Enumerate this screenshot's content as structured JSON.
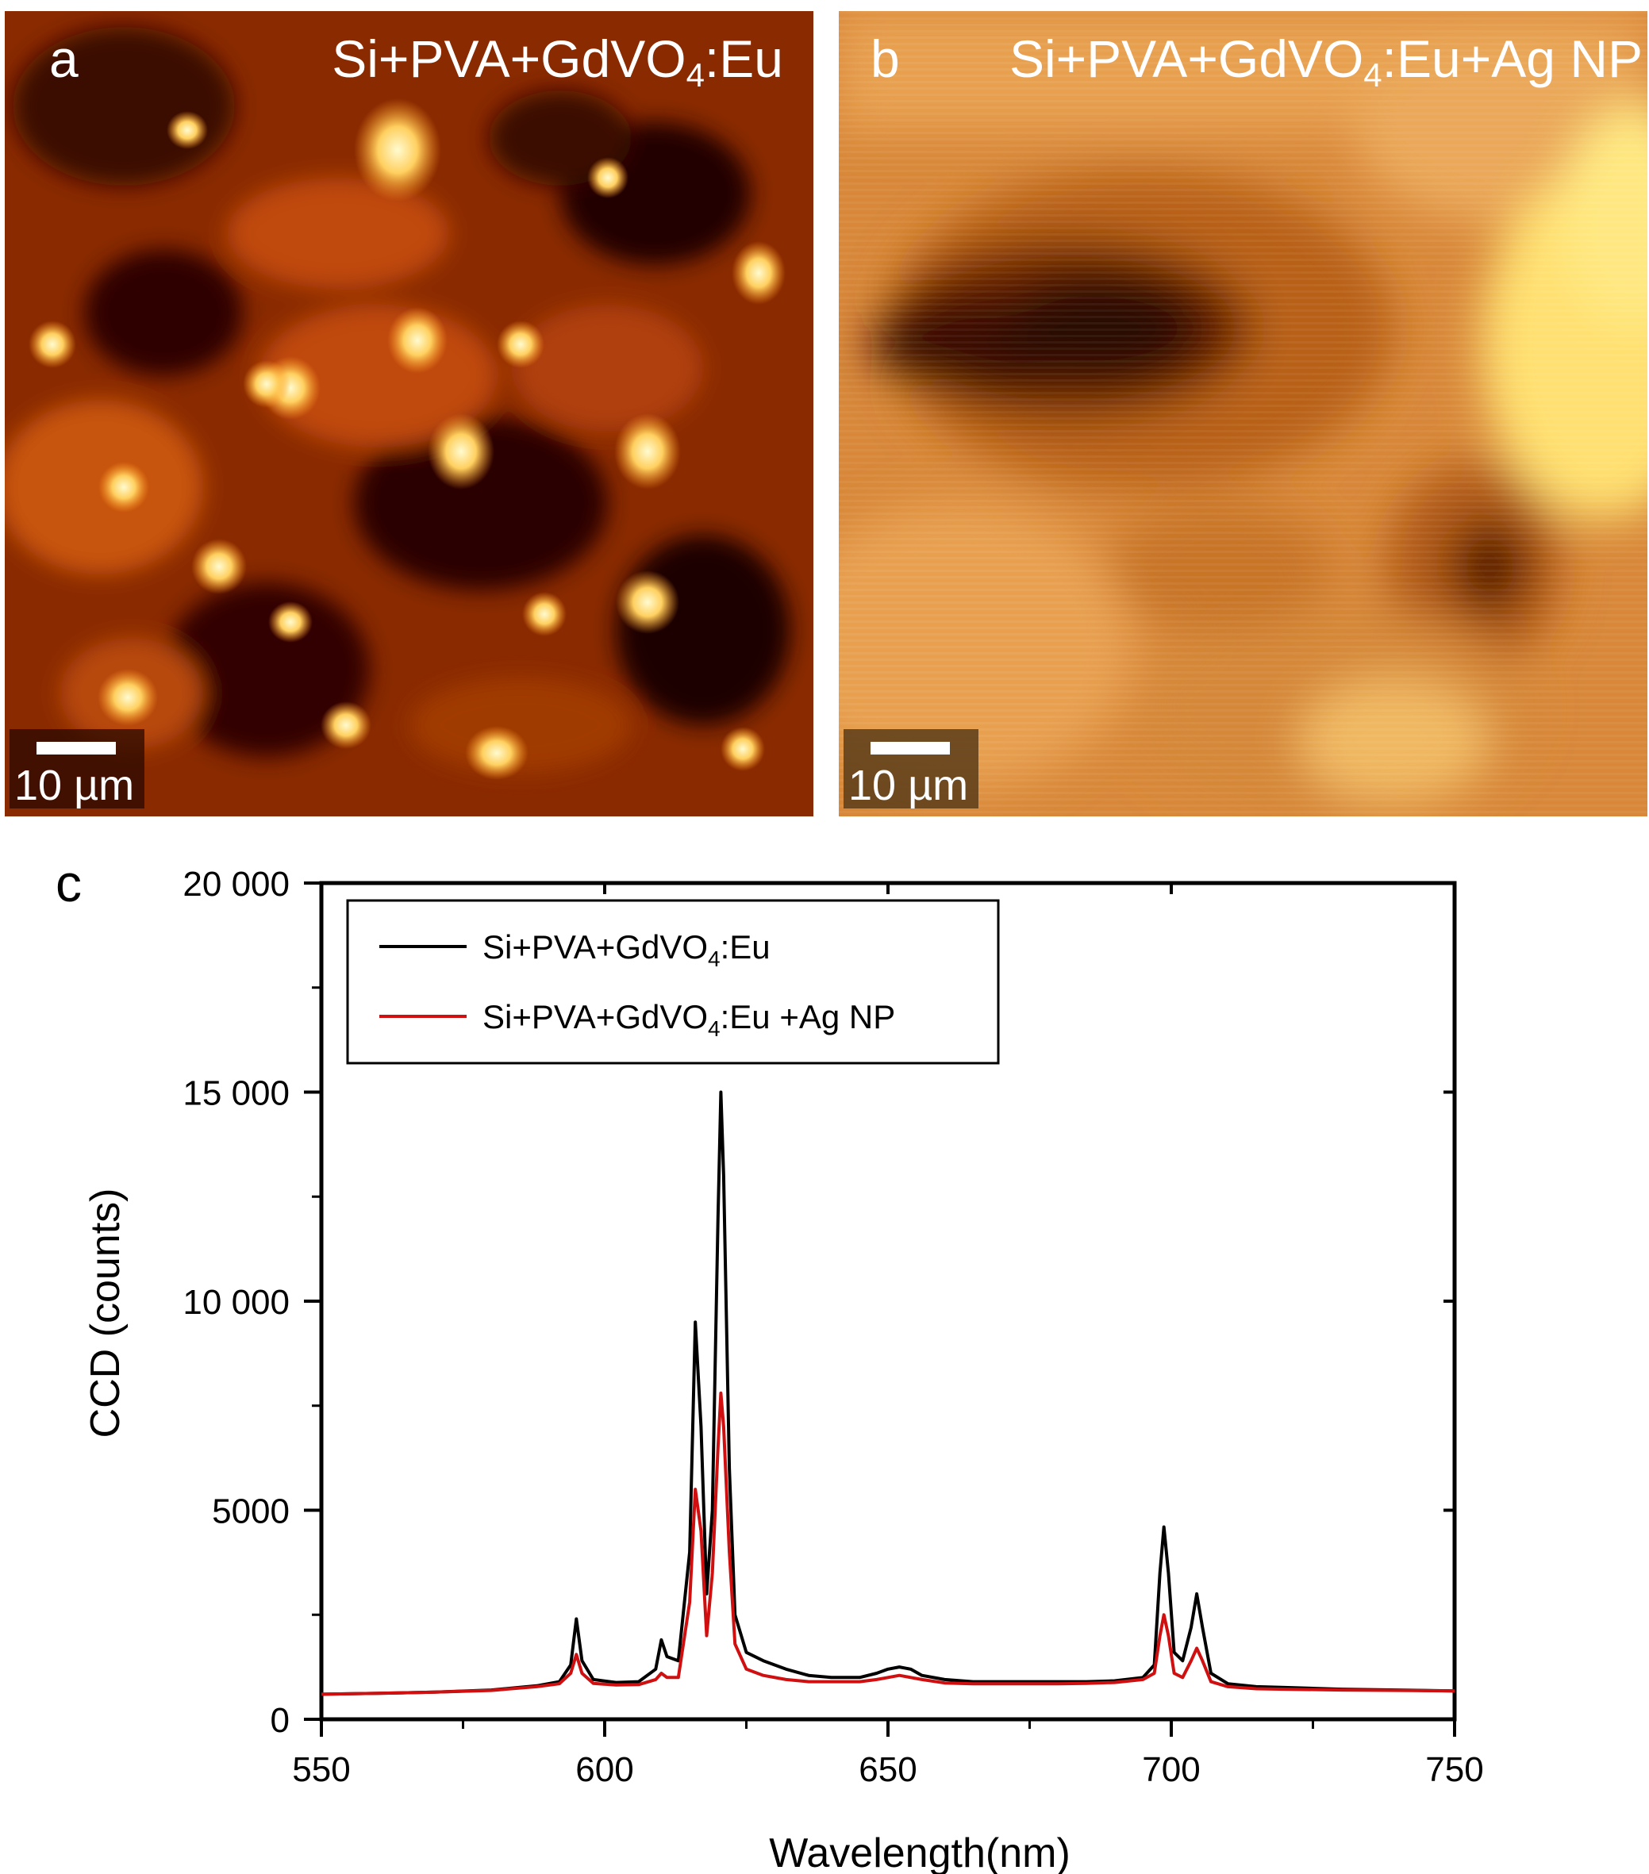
{
  "panels": {
    "a": {
      "letter": "a",
      "title_main": "Si+PVA+GdVO",
      "title_sub": "4",
      "title_tail": ":Eu",
      "scale_bar": "10 µm"
    },
    "b": {
      "letter": "b",
      "title_main": "Si+PVA+GdVO",
      "title_sub": "4",
      "title_tail": ":Eu+Ag NP",
      "scale_bar": "10 µm"
    },
    "c": {
      "letter": "c"
    }
  },
  "colors": {
    "series_black": "#000000",
    "series_red": "#d01010",
    "heatmap_dark": "#1a0000",
    "heatmap_bright": "#fff2a0"
  },
  "chart_data": {
    "type": "line",
    "title": "",
    "xlabel": "Wavelength(nm)",
    "ylabel": "CCD (counts)",
    "xlim": [
      550,
      750
    ],
    "ylim": [
      0,
      20000
    ],
    "x_ticks": [
      550,
      600,
      650,
      700,
      750
    ],
    "x_tick_labels": [
      "550",
      "600",
      "650",
      "700",
      "750"
    ],
    "y_ticks": [
      0,
      5000,
      10000,
      15000,
      20000
    ],
    "y_tick_labels": [
      "0",
      "5000",
      "10 000",
      "15 000",
      "20 000"
    ],
    "grid": false,
    "legend_position": "top-left",
    "series": [
      {
        "name_main": "Si+PVA+GdVO",
        "name_sub": "4",
        "name_tail": ":Eu",
        "color": "#000000",
        "points": [
          [
            550,
            600
          ],
          [
            560,
            620
          ],
          [
            570,
            650
          ],
          [
            580,
            700
          ],
          [
            588,
            800
          ],
          [
            592,
            900
          ],
          [
            594,
            1300
          ],
          [
            595,
            2400
          ],
          [
            596,
            1400
          ],
          [
            598,
            950
          ],
          [
            602,
            880
          ],
          [
            606,
            900
          ],
          [
            609,
            1200
          ],
          [
            610,
            1900
          ],
          [
            611,
            1500
          ],
          [
            613,
            1400
          ],
          [
            615,
            4000
          ],
          [
            616,
            9500
          ],
          [
            617,
            7000
          ],
          [
            618,
            3000
          ],
          [
            619,
            5000
          ],
          [
            620,
            12000
          ],
          [
            620.5,
            15000
          ],
          [
            621,
            13000
          ],
          [
            622,
            6000
          ],
          [
            623,
            2500
          ],
          [
            625,
            1600
          ],
          [
            628,
            1400
          ],
          [
            632,
            1200
          ],
          [
            636,
            1050
          ],
          [
            640,
            1000
          ],
          [
            645,
            1000
          ],
          [
            648,
            1100
          ],
          [
            650,
            1200
          ],
          [
            652,
            1250
          ],
          [
            654,
            1200
          ],
          [
            656,
            1050
          ],
          [
            660,
            950
          ],
          [
            665,
            900
          ],
          [
            670,
            900
          ],
          [
            675,
            900
          ],
          [
            680,
            900
          ],
          [
            685,
            900
          ],
          [
            690,
            920
          ],
          [
            695,
            1000
          ],
          [
            697,
            1300
          ],
          [
            698,
            3500
          ],
          [
            698.7,
            4600
          ],
          [
            699.5,
            3500
          ],
          [
            700.5,
            1600
          ],
          [
            702,
            1400
          ],
          [
            703.5,
            2200
          ],
          [
            704.5,
            3000
          ],
          [
            705.5,
            2200
          ],
          [
            707,
            1100
          ],
          [
            710,
            850
          ],
          [
            715,
            780
          ],
          [
            720,
            760
          ],
          [
            730,
            720
          ],
          [
            740,
            700
          ],
          [
            750,
            680
          ]
        ]
      },
      {
        "name_main": "Si+PVA+GdVO",
        "name_sub": "4",
        "name_tail": ":Eu +Ag NP",
        "color": "#d01010",
        "points": [
          [
            550,
            600
          ],
          [
            560,
            620
          ],
          [
            570,
            650
          ],
          [
            580,
            690
          ],
          [
            588,
            780
          ],
          [
            592,
            850
          ],
          [
            594,
            1100
          ],
          [
            595,
            1550
          ],
          [
            596,
            1100
          ],
          [
            598,
            860
          ],
          [
            602,
            820
          ],
          [
            606,
            830
          ],
          [
            609,
            950
          ],
          [
            610,
            1100
          ],
          [
            611,
            1000
          ],
          [
            613,
            1000
          ],
          [
            615,
            2800
          ],
          [
            616,
            5500
          ],
          [
            617,
            4500
          ],
          [
            618,
            2000
          ],
          [
            619,
            3500
          ],
          [
            620,
            6500
          ],
          [
            620.5,
            7800
          ],
          [
            621,
            7000
          ],
          [
            622,
            4000
          ],
          [
            623,
            1800
          ],
          [
            625,
            1200
          ],
          [
            628,
            1050
          ],
          [
            632,
            950
          ],
          [
            636,
            900
          ],
          [
            640,
            900
          ],
          [
            645,
            900
          ],
          [
            648,
            950
          ],
          [
            650,
            1000
          ],
          [
            652,
            1050
          ],
          [
            654,
            1000
          ],
          [
            656,
            950
          ],
          [
            660,
            870
          ],
          [
            665,
            850
          ],
          [
            670,
            850
          ],
          [
            675,
            850
          ],
          [
            680,
            850
          ],
          [
            685,
            860
          ],
          [
            690,
            880
          ],
          [
            695,
            950
          ],
          [
            697,
            1100
          ],
          [
            698,
            2000
          ],
          [
            698.7,
            2500
          ],
          [
            699.5,
            2000
          ],
          [
            700.5,
            1100
          ],
          [
            702,
            1000
          ],
          [
            703.5,
            1400
          ],
          [
            704.5,
            1700
          ],
          [
            705.5,
            1400
          ],
          [
            707,
            900
          ],
          [
            710,
            780
          ],
          [
            715,
            730
          ],
          [
            720,
            720
          ],
          [
            730,
            700
          ],
          [
            740,
            690
          ],
          [
            750,
            680
          ]
        ]
      }
    ]
  }
}
